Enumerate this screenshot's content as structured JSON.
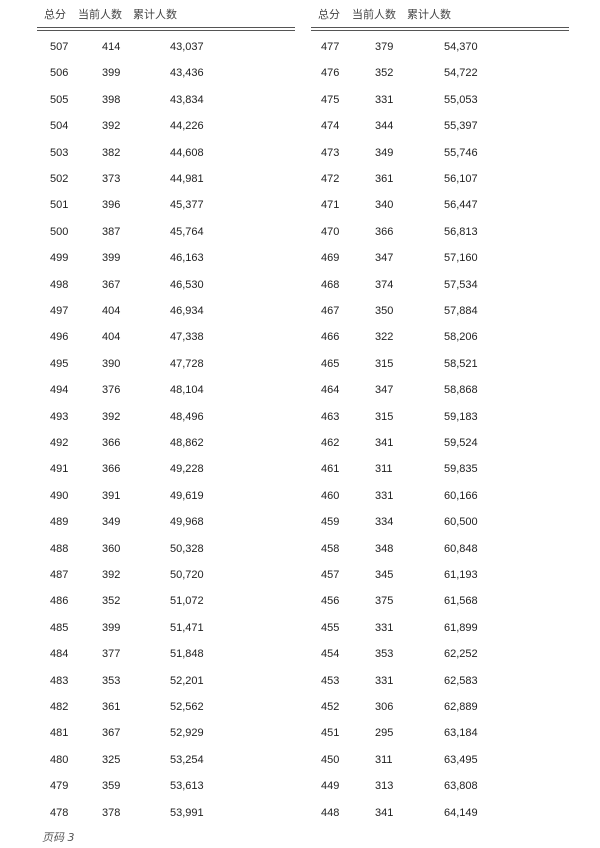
{
  "headers": [
    "总分",
    "当前人数",
    "累计人数"
  ],
  "left_table": [
    [
      "507",
      "414",
      "43,037"
    ],
    [
      "506",
      "399",
      "43,436"
    ],
    [
      "505",
      "398",
      "43,834"
    ],
    [
      "504",
      "392",
      "44,226"
    ],
    [
      "503",
      "382",
      "44,608"
    ],
    [
      "502",
      "373",
      "44,981"
    ],
    [
      "501",
      "396",
      "45,377"
    ],
    [
      "500",
      "387",
      "45,764"
    ],
    [
      "499",
      "399",
      "46,163"
    ],
    [
      "498",
      "367",
      "46,530"
    ],
    [
      "497",
      "404",
      "46,934"
    ],
    [
      "496",
      "404",
      "47,338"
    ],
    [
      "495",
      "390",
      "47,728"
    ],
    [
      "494",
      "376",
      "48,104"
    ],
    [
      "493",
      "392",
      "48,496"
    ],
    [
      "492",
      "366",
      "48,862"
    ],
    [
      "491",
      "366",
      "49,228"
    ],
    [
      "490",
      "391",
      "49,619"
    ],
    [
      "489",
      "349",
      "49,968"
    ],
    [
      "488",
      "360",
      "50,328"
    ],
    [
      "487",
      "392",
      "50,720"
    ],
    [
      "486",
      "352",
      "51,072"
    ],
    [
      "485",
      "399",
      "51,471"
    ],
    [
      "484",
      "377",
      "51,848"
    ],
    [
      "483",
      "353",
      "52,201"
    ],
    [
      "482",
      "361",
      "52,562"
    ],
    [
      "481",
      "367",
      "52,929"
    ],
    [
      "480",
      "325",
      "53,254"
    ],
    [
      "479",
      "359",
      "53,613"
    ],
    [
      "478",
      "378",
      "53,991"
    ]
  ],
  "right_table": [
    [
      "477",
      "379",
      "54,370"
    ],
    [
      "476",
      "352",
      "54,722"
    ],
    [
      "475",
      "331",
      "55,053"
    ],
    [
      "474",
      "344",
      "55,397"
    ],
    [
      "473",
      "349",
      "55,746"
    ],
    [
      "472",
      "361",
      "56,107"
    ],
    [
      "471",
      "340",
      "56,447"
    ],
    [
      "470",
      "366",
      "56,813"
    ],
    [
      "469",
      "347",
      "57,160"
    ],
    [
      "468",
      "374",
      "57,534"
    ],
    [
      "467",
      "350",
      "57,884"
    ],
    [
      "466",
      "322",
      "58,206"
    ],
    [
      "465",
      "315",
      "58,521"
    ],
    [
      "464",
      "347",
      "58,868"
    ],
    [
      "463",
      "315",
      "59,183"
    ],
    [
      "462",
      "341",
      "59,524"
    ],
    [
      "461",
      "311",
      "59,835"
    ],
    [
      "460",
      "331",
      "60,166"
    ],
    [
      "459",
      "334",
      "60,500"
    ],
    [
      "458",
      "348",
      "60,848"
    ],
    [
      "457",
      "345",
      "61,193"
    ],
    [
      "456",
      "375",
      "61,568"
    ],
    [
      "455",
      "331",
      "61,899"
    ],
    [
      "454",
      "353",
      "62,252"
    ],
    [
      "453",
      "331",
      "62,583"
    ],
    [
      "452",
      "306",
      "62,889"
    ],
    [
      "451",
      "295",
      "63,184"
    ],
    [
      "450",
      "311",
      "63,495"
    ],
    [
      "449",
      "313",
      "63,808"
    ],
    [
      "448",
      "341",
      "64,149"
    ]
  ],
  "footer": {
    "page_label": "页码 3"
  }
}
